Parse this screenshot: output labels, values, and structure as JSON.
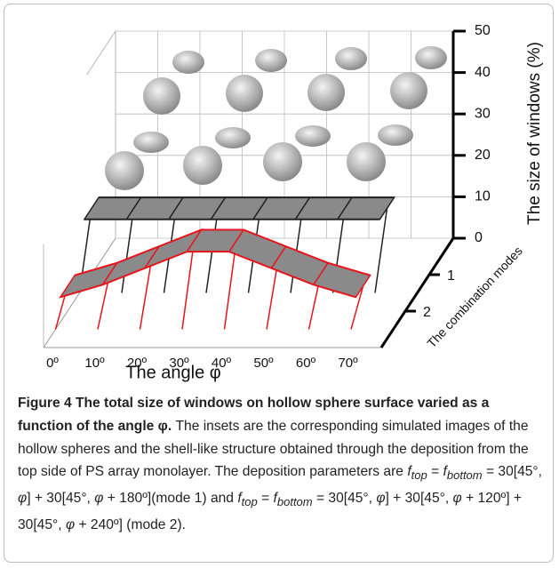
{
  "chart_data": {
    "type": "ribbon3d",
    "xlabel": "The angle φ",
    "zlabel": "The size of windows (%)",
    "depth_label": "The combination modes",
    "xlim": [
      0,
      80
    ],
    "xticks": [
      {
        "value": 0,
        "label": "0º"
      },
      {
        "value": 10,
        "label": "10º"
      },
      {
        "value": 20,
        "label": "20º"
      },
      {
        "value": 30,
        "label": "30º"
      },
      {
        "value": 40,
        "label": "40º"
      },
      {
        "value": 50,
        "label": "50º"
      },
      {
        "value": 60,
        "label": "60º"
      },
      {
        "value": 70,
        "label": "70º"
      }
    ],
    "zlim": [
      0,
      50
    ],
    "zticks": [
      0,
      10,
      20,
      30,
      40,
      50
    ],
    "depth_categories": [
      "1",
      "2"
    ],
    "x": [
      0,
      10,
      20,
      30,
      40,
      50,
      60,
      70
    ],
    "series": [
      {
        "color": "#222222",
        "values": [
          16,
          16,
          16,
          16,
          16,
          16,
          16,
          16
        ]
      },
      {
        "color": "#e8141b",
        "values": [
          6,
          9,
          13,
          17,
          17,
          13,
          9,
          6
        ]
      }
    ]
  },
  "caption": {
    "label": "Figure 4",
    "title": "The total size of windows on hollow sphere surface varied as a function of the angle φ.",
    "text": "The insets are the corresponding simulated images of the hollow spheres and the shell-like structure obtained through the deposition from the top side of PS array monolayer. The deposition parameters are",
    "eq1": [
      "f",
      "top",
      " = ",
      "f",
      "bottom",
      " = 30[45°, ",
      "φ",
      "] + 30[45°, ",
      "φ",
      " + 180º](mode 1) and"
    ],
    "eq2": [
      "f",
      "top",
      " = ",
      "f",
      "bottom",
      " = 30[45°, ",
      "φ",
      "] + 30[45°, ",
      "φ",
      " + 120º] + 30[45°, ",
      "φ",
      " + 240º] (mode 2)."
    ]
  }
}
